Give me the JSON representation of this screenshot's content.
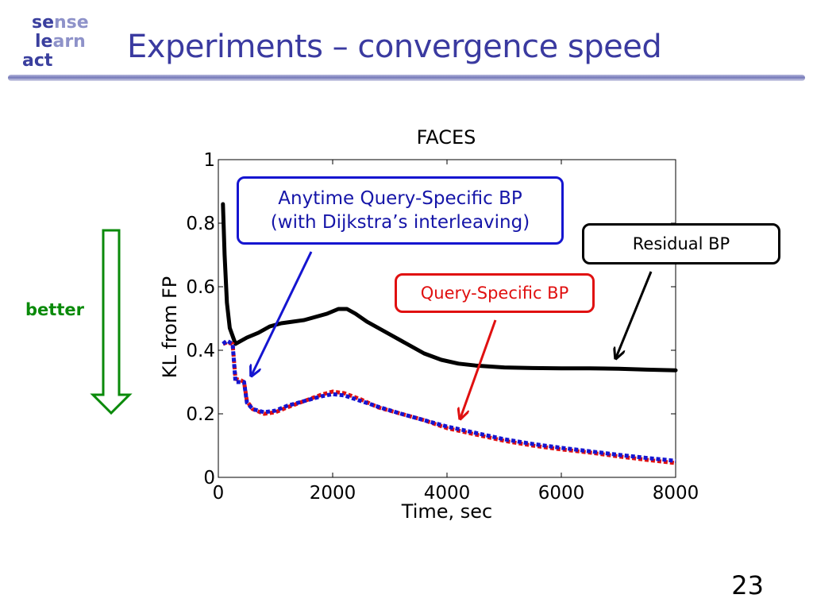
{
  "logo": {
    "line1_a": "se",
    "line1_b": "nse",
    "line2_a": "le",
    "line2_b": "arn",
    "line3_a": "act",
    "line3_b": ""
  },
  "slide": {
    "title": "Experiments – convergence speed",
    "page_number": "23"
  },
  "indicator": {
    "label": "better",
    "color": "#0a8a0a"
  },
  "annotations": {
    "anytime_line1": "Anytime Query-Specific BP",
    "anytime_line2": "(with Dijkstra’s interleaving)",
    "residual": "Residual BP",
    "query_specific": "Query-Specific BP"
  },
  "chart_data": {
    "type": "line",
    "title": "FACES",
    "xlabel": "Time, sec",
    "ylabel": "KL from FP",
    "xlim": [
      0,
      8000
    ],
    "ylim": [
      0,
      1
    ],
    "xticks": [
      0,
      2000,
      4000,
      6000,
      8000
    ],
    "yticks": [
      0,
      0.2,
      0.4,
      0.6,
      0.8,
      1
    ],
    "ytick_labels": [
      "0",
      "0.2",
      "0.4",
      "0.6",
      "0.8",
      "1"
    ],
    "grid": false,
    "series": [
      {
        "name": "Residual BP",
        "color": "#000000",
        "style": "solid",
        "x": [
          80,
          110,
          150,
          200,
          300,
          500,
          700,
          900,
          1100,
          1300,
          1500,
          1700,
          1900,
          2100,
          2250,
          2400,
          2600,
          2800,
          3000,
          3300,
          3600,
          3900,
          4200,
          4500,
          5000,
          5500,
          6000,
          6500,
          7000,
          7500,
          8000
        ],
        "y": [
          0.86,
          0.7,
          0.55,
          0.47,
          0.42,
          0.44,
          0.455,
          0.475,
          0.485,
          0.49,
          0.495,
          0.505,
          0.515,
          0.53,
          0.53,
          0.515,
          0.49,
          0.47,
          0.45,
          0.42,
          0.39,
          0.37,
          0.358,
          0.352,
          0.346,
          0.344,
          0.343,
          0.343,
          0.342,
          0.339,
          0.337
        ]
      },
      {
        "name": "Query-Specific BP",
        "color": "#e01010",
        "style": "dashed",
        "x": [
          80,
          150,
          250,
          300,
          400,
          450,
          500,
          600,
          800,
          1000,
          1200,
          1500,
          1800,
          2000,
          2200,
          2500,
          2800,
          3200,
          3600,
          4000,
          4500,
          5000,
          5500,
          6000,
          6500,
          7000,
          7500,
          8000
        ],
        "y": [
          0.42,
          0.425,
          0.42,
          0.31,
          0.305,
          0.3,
          0.24,
          0.215,
          0.2,
          0.205,
          0.22,
          0.24,
          0.26,
          0.27,
          0.265,
          0.245,
          0.22,
          0.2,
          0.18,
          0.155,
          0.135,
          0.115,
          0.1,
          0.088,
          0.078,
          0.066,
          0.055,
          0.045
        ]
      },
      {
        "name": "Anytime Query-Specific BP",
        "color": "#1515d0",
        "style": "dashed",
        "x": [
          80,
          150,
          250,
          300,
          400,
          450,
          500,
          600,
          800,
          1000,
          1200,
          1500,
          1800,
          2000,
          2200,
          2500,
          2800,
          3200,
          3600,
          4000,
          4500,
          5000,
          5500,
          6000,
          6500,
          7000,
          7500,
          8000
        ],
        "y": [
          0.42,
          0.43,
          0.42,
          0.3,
          0.3,
          0.3,
          0.235,
          0.215,
          0.205,
          0.21,
          0.225,
          0.24,
          0.255,
          0.262,
          0.258,
          0.24,
          0.222,
          0.2,
          0.18,
          0.16,
          0.14,
          0.12,
          0.105,
          0.093,
          0.082,
          0.071,
          0.061,
          0.052
        ]
      }
    ]
  }
}
